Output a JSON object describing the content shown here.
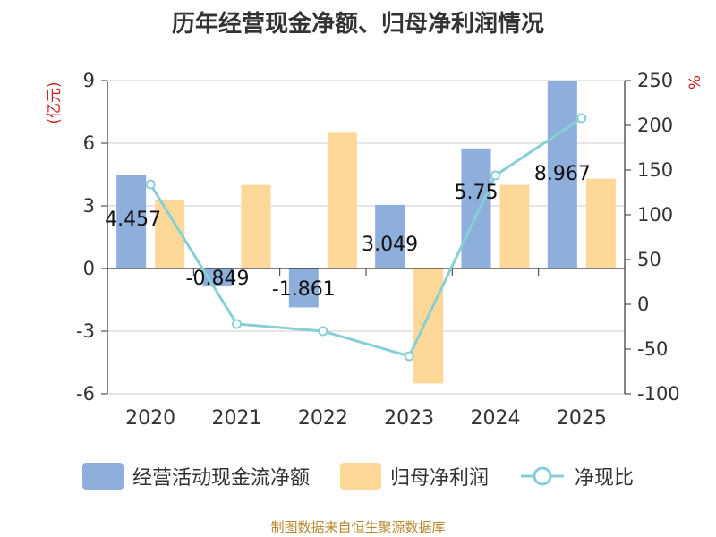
{
  "chart_data": {
    "type": "bar",
    "title": "历年经营现金净额、归母净利润情况",
    "categories": [
      "2020",
      "2021",
      "2022",
      "2023",
      "2024",
      "2025"
    ],
    "series": [
      {
        "name": "经营活动现金流净额",
        "kind": "bar",
        "axis": "left",
        "color": "#8eaedb",
        "values": [
          4.457,
          -0.849,
          -1.861,
          3.049,
          5.75,
          8.967
        ],
        "labels": [
          "4.457",
          "-0.849",
          "-1.861",
          "3.049",
          "5.75",
          "8.967"
        ]
      },
      {
        "name": "归母净利润",
        "kind": "bar",
        "axis": "left",
        "color": "#fdd898",
        "values": [
          3.3,
          4.0,
          6.5,
          -5.5,
          4.0,
          4.3
        ]
      },
      {
        "name": "净现比",
        "kind": "line",
        "axis": "right",
        "color": "#86d0d5",
        "values": [
          134,
          -22,
          -30,
          -58,
          144,
          208
        ]
      }
    ],
    "y_left": {
      "label": "(亿元)",
      "min": -6,
      "max": 9,
      "ticks": [
        -6,
        -3,
        0,
        3,
        6,
        9
      ]
    },
    "y_right": {
      "label": "%",
      "min": -100,
      "max": 250,
      "ticks": [
        -100,
        -50,
        0,
        50,
        100,
        150,
        200,
        250
      ]
    },
    "grid": true,
    "legend_position": "bottom"
  },
  "source": "制图数据来自恒生聚源数据库"
}
